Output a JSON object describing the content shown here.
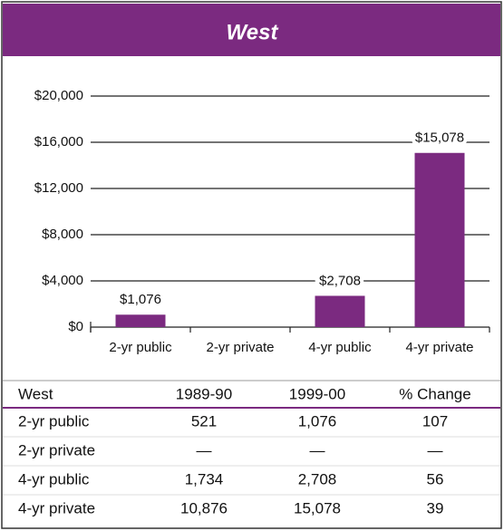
{
  "chart_data": {
    "type": "bar",
    "title": "West",
    "categories": [
      "2-yr public",
      "2-yr private",
      "4-yr public",
      "4-yr private"
    ],
    "values": [
      1076,
      null,
      2708,
      15078
    ],
    "value_labels": [
      "$1,076",
      null,
      "$2,708",
      "$15,078"
    ],
    "color": "#7b2a80",
    "ylim": [
      0,
      20000
    ],
    "yticks": [
      {
        "value": 0,
        "label": "$0"
      },
      {
        "value": 4000,
        "label": "$4,000"
      },
      {
        "value": 8000,
        "label": "$8,000"
      },
      {
        "value": 12000,
        "label": "$12,000"
      },
      {
        "value": 16000,
        "label": "$16,000"
      },
      {
        "value": 20000,
        "label": "$20,000"
      }
    ],
    "grid": true
  },
  "table": {
    "header": [
      "West",
      "1989-90",
      "1999-00",
      "% Change"
    ],
    "rows": [
      [
        "2-yr public",
        "521",
        "1,076",
        "107"
      ],
      [
        "2-yr private",
        "—",
        "—",
        "—"
      ],
      [
        "4-yr public",
        "1,734",
        "2,708",
        "56"
      ],
      [
        "4-yr private",
        "10,876",
        "15,078",
        "39"
      ]
    ]
  }
}
